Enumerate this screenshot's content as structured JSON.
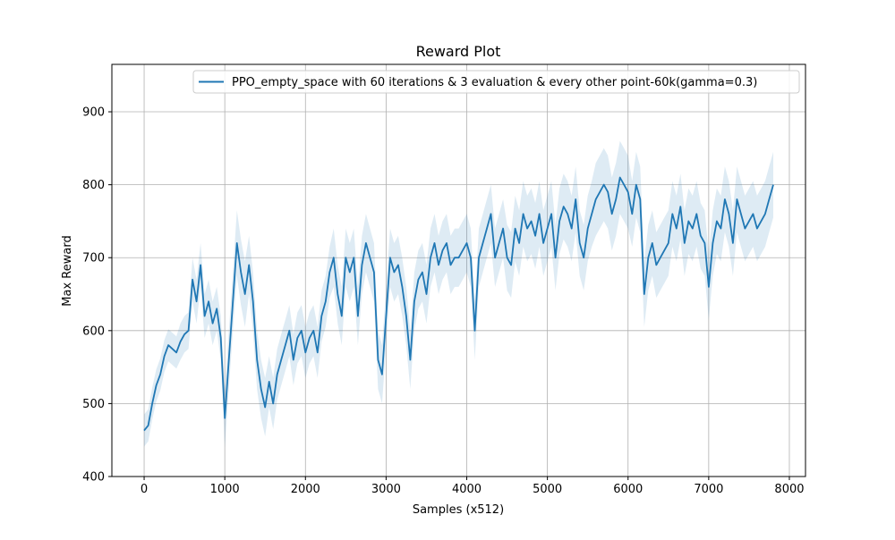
{
  "chart_data": {
    "type": "line",
    "title": "Reward Plot",
    "xlabel": "Samples (x512)",
    "ylabel": "Max Reward",
    "xlim": [
      -400,
      8200
    ],
    "ylim": [
      400,
      965
    ],
    "xticks": [
      0,
      1000,
      2000,
      3000,
      4000,
      5000,
      6000,
      7000,
      8000
    ],
    "xtick_labels": [
      "0",
      "1000",
      "2000",
      "3000",
      "4000",
      "5000",
      "6000",
      "7000",
      "8000"
    ],
    "yticks": [
      400,
      500,
      600,
      700,
      800,
      900
    ],
    "ytick_labels": [
      "400",
      "500",
      "600",
      "700",
      "800",
      "900"
    ],
    "grid": true,
    "legend_position": "top-right",
    "line_color": "#1f77b4",
    "band_color": "#1f77b4",
    "series": [
      {
        "name": "PPO_empty_space with 60 iterations & 3 evaluation & every other point-60k(gamma=0.3)",
        "x": [
          0,
          50,
          100,
          150,
          200,
          250,
          300,
          350,
          400,
          450,
          500,
          550,
          600,
          650,
          700,
          750,
          800,
          850,
          900,
          950,
          1000,
          1050,
          1100,
          1150,
          1200,
          1250,
          1300,
          1350,
          1400,
          1450,
          1500,
          1550,
          1600,
          1650,
          1700,
          1750,
          1800,
          1850,
          1900,
          1950,
          2000,
          2050,
          2100,
          2150,
          2200,
          2250,
          2300,
          2350,
          2400,
          2450,
          2500,
          2550,
          2600,
          2650,
          2700,
          2750,
          2800,
          2850,
          2900,
          2950,
          3000,
          3050,
          3100,
          3150,
          3200,
          3250,
          3300,
          3350,
          3400,
          3450,
          3500,
          3550,
          3600,
          3650,
          3700,
          3750,
          3800,
          3850,
          3900,
          3950,
          4000,
          4050,
          4100,
          4150,
          4200,
          4250,
          4300,
          4350,
          4400,
          4450,
          4500,
          4550,
          4600,
          4650,
          4700,
          4750,
          4800,
          4850,
          4900,
          4950,
          5000,
          5050,
          5100,
          5150,
          5200,
          5250,
          5300,
          5350,
          5400,
          5450,
          5500,
          5550,
          5600,
          5650,
          5700,
          5750,
          5800,
          5850,
          5900,
          5950,
          6000,
          6050,
          6100,
          6150,
          6200,
          6250,
          6300,
          6350,
          6400,
          6450,
          6500,
          6550,
          6600,
          6650,
          6700,
          6750,
          6800,
          6850,
          6900,
          6950,
          7000,
          7050,
          7100,
          7150,
          7200,
          7250,
          7300,
          7350,
          7400,
          7450,
          7500,
          7550,
          7600,
          7650,
          7700,
          7750,
          7800
        ],
        "y": [
          463,
          470,
          500,
          525,
          540,
          565,
          580,
          575,
          570,
          585,
          595,
          600,
          670,
          640,
          690,
          620,
          640,
          610,
          630,
          590,
          480,
          560,
          640,
          720,
          680,
          650,
          690,
          640,
          560,
          520,
          495,
          530,
          500,
          540,
          560,
          580,
          600,
          560,
          590,
          600,
          570,
          590,
          600,
          570,
          620,
          640,
          680,
          700,
          650,
          620,
          700,
          680,
          700,
          620,
          690,
          720,
          700,
          680,
          560,
          540,
          620,
          700,
          680,
          690,
          660,
          620,
          560,
          640,
          670,
          680,
          650,
          700,
          720,
          690,
          710,
          720,
          690,
          700,
          700,
          710,
          720,
          700,
          600,
          700,
          720,
          740,
          760,
          700,
          720,
          740,
          700,
          690,
          740,
          720,
          760,
          740,
          750,
          730,
          760,
          720,
          740,
          760,
          700,
          750,
          770,
          760,
          740,
          780,
          720,
          700,
          740,
          760,
          780,
          790,
          800,
          790,
          760,
          780,
          810,
          800,
          790,
          760,
          800,
          780,
          650,
          700,
          720,
          690,
          700,
          710,
          720,
          760,
          740,
          770,
          720,
          750,
          740,
          760,
          730,
          720,
          660,
          720,
          750,
          740,
          780,
          760,
          720,
          780,
          760,
          740,
          750,
          760,
          740,
          750,
          760,
          780,
          800
        ],
        "band": [
          22,
          22,
          22,
          22,
          22,
          22,
          22,
          22,
          22,
          25,
          25,
          25,
          30,
          30,
          30,
          30,
          30,
          30,
          30,
          30,
          40,
          40,
          40,
          45,
          45,
          45,
          40,
          40,
          40,
          40,
          40,
          35,
          35,
          35,
          35,
          35,
          35,
          35,
          35,
          35,
          35,
          35,
          35,
          35,
          35,
          35,
          35,
          40,
          40,
          40,
          40,
          40,
          40,
          40,
          40,
          40,
          40,
          40,
          40,
          40,
          40,
          40,
          40,
          40,
          40,
          40,
          40,
          40,
          40,
          40,
          40,
          40,
          40,
          40,
          40,
          40,
          40,
          40,
          40,
          40,
          40,
          40,
          40,
          40,
          40,
          40,
          40,
          40,
          40,
          40,
          45,
          45,
          45,
          45,
          45,
          45,
          45,
          45,
          45,
          45,
          45,
          45,
          45,
          45,
          45,
          45,
          45,
          45,
          45,
          45,
          45,
          45,
          50,
          50,
          50,
          50,
          50,
          50,
          50,
          50,
          50,
          45,
          45,
          45,
          45,
          45,
          45,
          45,
          45,
          45,
          45,
          45,
          45,
          45,
          45,
          45,
          45,
          45,
          45,
          45,
          45,
          45,
          45,
          45,
          45,
          45,
          45,
          45,
          45,
          45,
          45,
          45,
          45,
          45,
          45,
          45,
          45
        ]
      }
    ]
  }
}
